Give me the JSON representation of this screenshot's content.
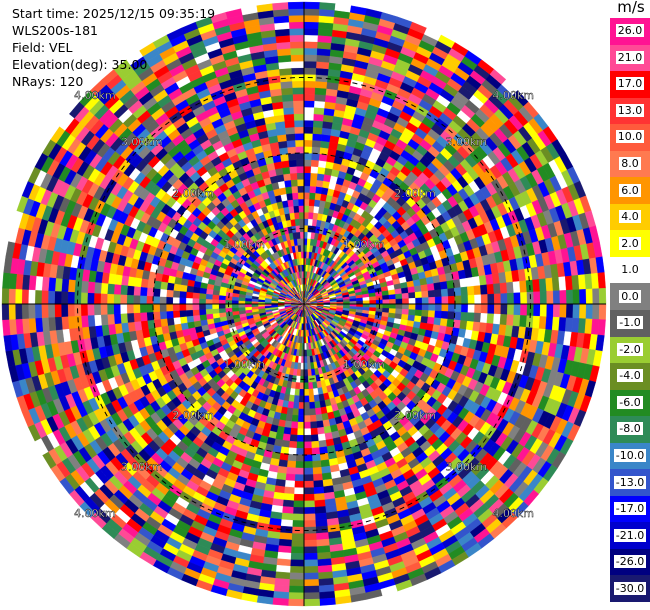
{
  "header": {
    "start_time": "Start time: 2025/12/15 09:35:19",
    "instrument": "WLS200s-181",
    "field": "Field: VEL",
    "elevation": "Elevation(deg): 35.00",
    "nrays": "NRays: 120"
  },
  "colorbar": {
    "unit": "m/s",
    "labels": [
      "26.0",
      "21.0",
      "17.0",
      "13.0",
      "10.0",
      "8.0",
      "6.0",
      "4.0",
      "2.0",
      "1.0",
      "0.0",
      "-1.0",
      "-2.0",
      "-4.0",
      "-6.0",
      "-8.0",
      "-10.0",
      "-13.0",
      "-17.0",
      "-21.0",
      "-26.0",
      "-30.0"
    ],
    "colors": [
      "#ff1493",
      "#ff4a96",
      "#ff0000",
      "#ff3333",
      "#ff5a3c",
      "#ff7a50",
      "#ff9500",
      "#ffcc00",
      "#ffff00",
      "#ffffff",
      "#808080",
      "#606060",
      "#9acd32",
      "#6b8e23",
      "#228b22",
      "#2e8b57",
      "#3a86c8",
      "#3355cc",
      "#0000ff",
      "#0000cd",
      "#000080",
      "#191970"
    ]
  },
  "chart_data": {
    "type": "heatmap",
    "projection": "polar (PPI)",
    "field": "VEL",
    "units": "m/s",
    "elevation_deg": 35.0,
    "nrays": 120,
    "range_ring_labels": [
      "1.00km",
      "2.00km",
      "3.00km",
      "4.00km"
    ],
    "color_scale_values": [
      26.0,
      21.0,
      17.0,
      13.0,
      10.0,
      8.0,
      6.0,
      4.0,
      2.0,
      1.0,
      0.0,
      -1.0,
      -2.0,
      -4.0,
      -6.0,
      -8.0,
      -10.0,
      -13.0,
      -17.0,
      -21.0,
      -26.0,
      -30.0
    ]
  }
}
